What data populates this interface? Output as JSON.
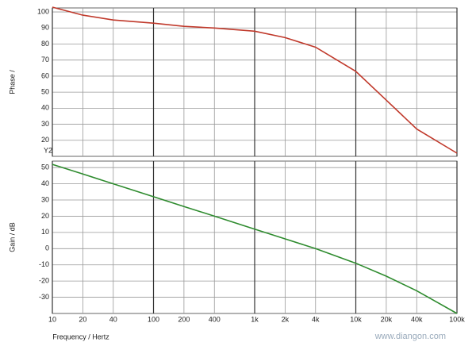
{
  "chart_data": [
    {
      "type": "line",
      "y_label": "Phase /",
      "annotation": "Y2",
      "log_x": true,
      "grid": true,
      "x": [
        10,
        20,
        40,
        100,
        200,
        400,
        1000,
        2000,
        4000,
        10000,
        20000,
        40000,
        100000
      ],
      "values": [
        103,
        98,
        95,
        93,
        91,
        90,
        88,
        84,
        78,
        63,
        45,
        27,
        12
      ],
      "color": "#c0392b",
      "xlim": [
        10,
        100000
      ],
      "ylim": [
        10,
        102.5
      ],
      "xticks": [
        10,
        20,
        40,
        100,
        200,
        400,
        1000,
        2000,
        4000,
        10000,
        20000,
        40000,
        100000
      ],
      "yticks": [
        20,
        30,
        40,
        50,
        60,
        70,
        80,
        90,
        100
      ]
    },
    {
      "type": "line",
      "y_label": "Gain / dB",
      "x_label": "Frequency / Hertz",
      "log_x": true,
      "grid": true,
      "x": [
        10,
        20,
        40,
        100,
        200,
        400,
        1000,
        2000,
        4000,
        10000,
        20000,
        40000,
        100000
      ],
      "values": [
        52,
        46,
        40,
        32,
        26,
        20,
        12,
        6,
        0,
        -9,
        -17,
        -26,
        -40
      ],
      "color": "#2e8b2e",
      "xlim": [
        10,
        100000
      ],
      "ylim": [
        -40,
        54
      ],
      "xticks": [
        10,
        20,
        40,
        100,
        200,
        400,
        {
          "value": 1000,
          "label": "1k"
        },
        {
          "value": 2000,
          "label": "2k"
        },
        {
          "value": 4000,
          "label": "4k"
        },
        {
          "value": 10000,
          "label": "10k"
        },
        {
          "value": 20000,
          "label": "20k"
        },
        {
          "value": 40000,
          "label": "40k"
        },
        {
          "value": 100000,
          "label": "100k"
        }
      ],
      "yticks": [
        -30,
        -20,
        -10,
        0,
        10,
        20,
        30,
        40,
        50
      ]
    }
  ],
  "watermark": "www.diangon.com"
}
